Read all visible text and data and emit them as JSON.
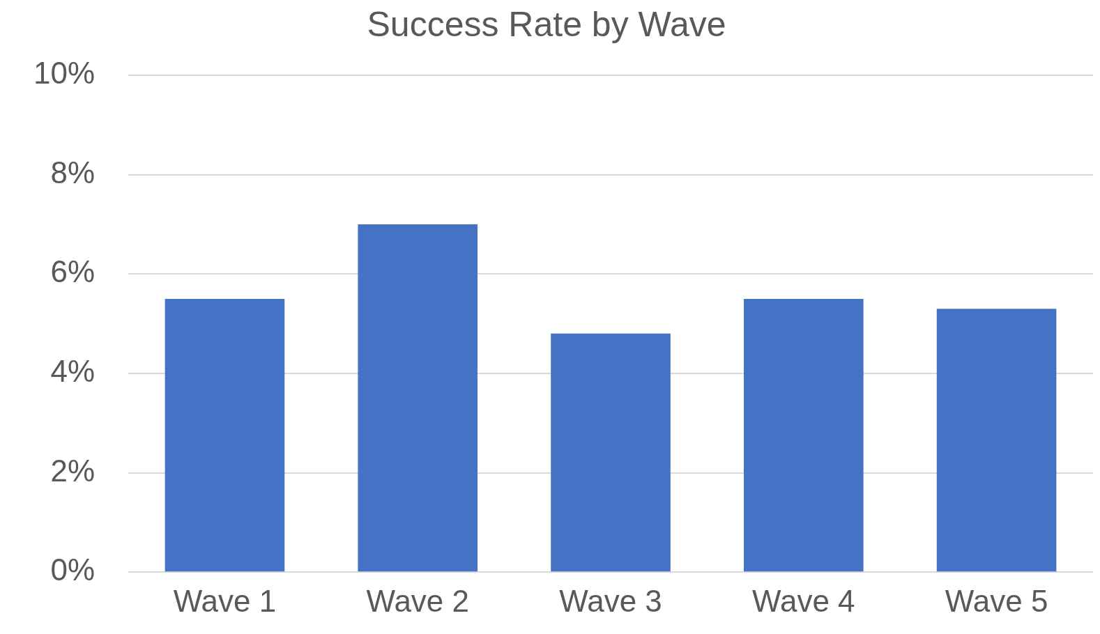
{
  "chart_data": {
    "type": "bar",
    "title": "Success Rate by Wave",
    "categories": [
      "Wave 1",
      "Wave 2",
      "Wave 3",
      "Wave 4",
      "Wave 5"
    ],
    "values": [
      5.5,
      7.0,
      4.8,
      5.5,
      5.3
    ],
    "color": "#4472c4",
    "ylim": [
      0,
      10
    ],
    "yticks": [
      {
        "value": 0,
        "label": "0%"
      },
      {
        "value": 2,
        "label": "2%"
      },
      {
        "value": 4,
        "label": "4%"
      },
      {
        "value": 6,
        "label": "6%"
      },
      {
        "value": 8,
        "label": "8%"
      },
      {
        "value": 10,
        "label": "10%"
      }
    ],
    "grid": "y"
  }
}
